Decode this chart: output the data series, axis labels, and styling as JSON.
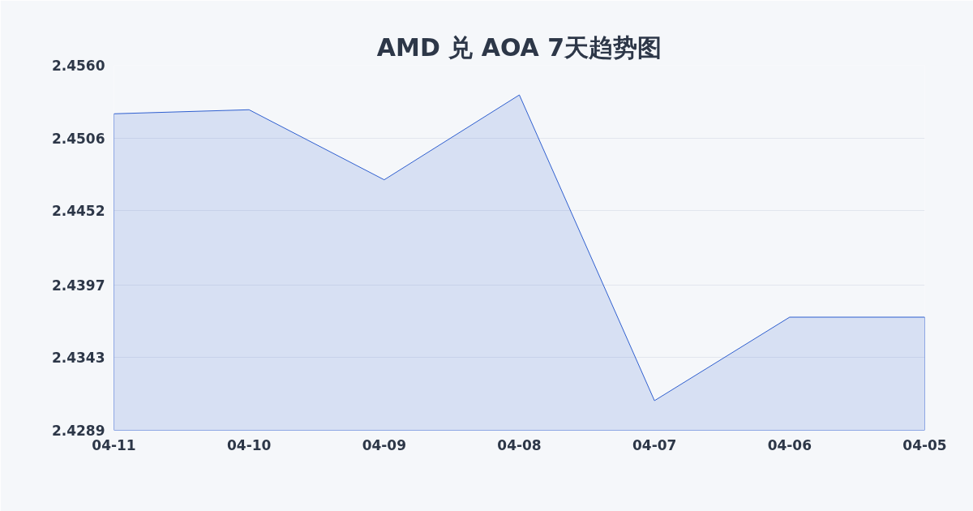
{
  "chart_data": {
    "type": "area",
    "title": "AMD 兑 AOA 7天趋势图",
    "categories": [
      "04-11",
      "04-10",
      "04-09",
      "04-08",
      "04-07",
      "04-06",
      "04-05"
    ],
    "series": [
      {
        "color": "#2f5fcf",
        "values": [
          2.4524,
          2.4527,
          2.4475,
          2.4538,
          2.4311,
          2.4373,
          2.4373
        ]
      }
    ],
    "ylim": [
      2.4289,
      2.456
    ],
    "yticks": [
      2.4289,
      2.4343,
      2.4397,
      2.4452,
      2.4506,
      {
        "value": 2.456,
        "label": "2.4560"
      }
    ],
    "grid": "y"
  }
}
